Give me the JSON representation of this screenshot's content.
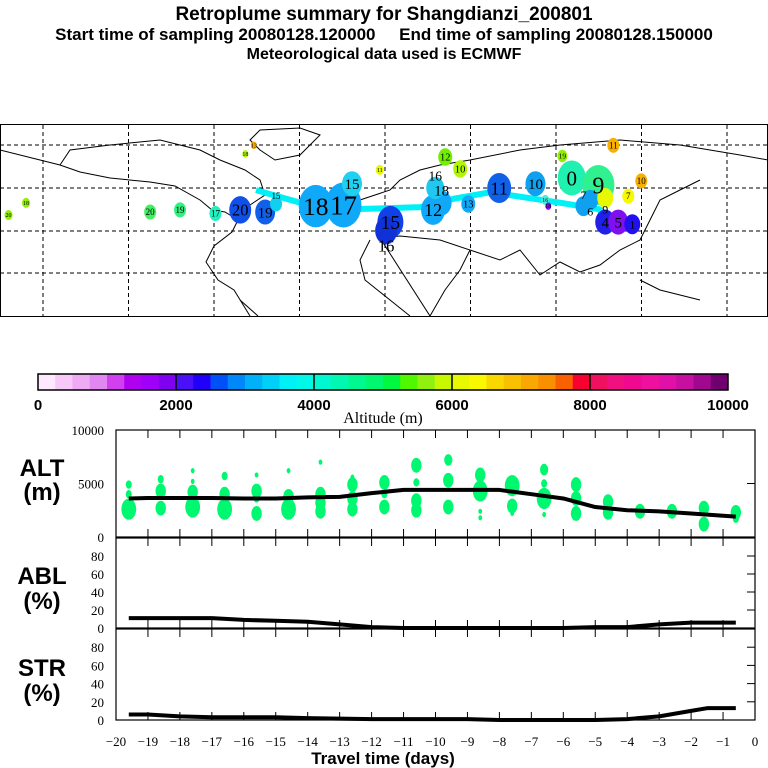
{
  "title": {
    "line1": "Retroplume summary for Shangdianzi_200801",
    "line2": "Start time of sampling 20080128.120000     End time of sampling 20080128.150000",
    "line3": "Meteorological data used is ECMWF"
  },
  "colorbar": {
    "label": "Altitude (m)",
    "ticks": [
      "0",
      "2000",
      "4000",
      "6000",
      "8000",
      "10000"
    ],
    "colors": [
      "#fde8fd",
      "#f8c8f8",
      "#eeaaf2",
      "#e088f0",
      "#d040f0",
      "#b000f0",
      "#a000f8",
      "#8000f0",
      "#4a10f8",
      "#2000f8",
      "#0050f8",
      "#0088f8",
      "#00b0f8",
      "#00d0f8",
      "#00f0f8",
      "#00f8e8",
      "#00f8d0",
      "#00f8b0",
      "#00f890",
      "#00f870",
      "#00f840",
      "#50f800",
      "#90f010",
      "#c8f800",
      "#e8f800",
      "#f8f800",
      "#f8d800",
      "#f8c000",
      "#f8a800",
      "#f89000",
      "#f86000",
      "#f80030",
      "#f01060",
      "#f01080",
      "#f00890",
      "#f010a0",
      "#e010a8",
      "#c810a0",
      "#a00890",
      "#700070"
    ]
  },
  "map": {
    "path_color": "#00f0f8",
    "path": [
      [
        -60,
        49
      ],
      [
        -39,
        43
      ],
      [
        -16,
        40
      ],
      [
        17,
        41
      ],
      [
        33,
        45
      ],
      [
        50,
        48
      ],
      [
        83,
        43
      ],
      [
        101,
        40
      ],
      [
        104,
        34
      ],
      [
        110,
        33
      ]
    ],
    "markers": [
      {
        "label": "17",
        "lon": -19,
        "lat": 42,
        "size": 18,
        "color": "#10a8f8"
      },
      {
        "label": "18",
        "lon": -32,
        "lat": 41.5,
        "size": 17,
        "color": "#10a8f8"
      },
      {
        "label": "15",
        "lon": 3,
        "lat": 34,
        "size": 13,
        "color": "#1040e8"
      },
      {
        "label": "16",
        "lon": 1,
        "lat": 30,
        "size": 11,
        "color": "#1030d8"
      },
      {
        "label": "12",
        "lon": 23,
        "lat": 39.7,
        "size": 12,
        "color": "#10a8f8"
      },
      {
        "label": "18",
        "lon": 27,
        "lat": 43,
        "size": 10,
        "color": "#10a8f8"
      },
      {
        "label": "13",
        "lon": 39.5,
        "lat": 42.5,
        "size": 7,
        "color": "#10a8f8"
      },
      {
        "label": "15",
        "lon": -15,
        "lat": 52,
        "size": 10,
        "color": "#20d0f0"
      },
      {
        "label": "16",
        "lon": 24,
        "lat": 50,
        "size": 9,
        "color": "#20c8f0"
      },
      {
        "label": "11",
        "lon": 54,
        "lat": 50,
        "size": 12,
        "color": "#1060e8"
      },
      {
        "label": "10",
        "lon": 71,
        "lat": 52,
        "size": 10,
        "color": "#10a0f0"
      },
      {
        "label": "0",
        "lon": 88,
        "lat": 54.7,
        "size": 14,
        "color": "#20f0b0"
      },
      {
        "label": "9",
        "lon": 100.5,
        "lat": 51.4,
        "size": 16,
        "color": "#30f090"
      },
      {
        "label": "6",
        "lon": 96.7,
        "lat": 44.4,
        "size": 8,
        "color": "#10a0f0"
      },
      {
        "label": "7",
        "lon": 93.5,
        "lat": 41.5,
        "size": 8,
        "color": "#10a0f0"
      },
      {
        "label": "9",
        "lon": 103.7,
        "lat": 45.3,
        "size": 8,
        "color": "#e8f800"
      },
      {
        "label": "7",
        "lon": 114.5,
        "lat": 46.2,
        "size": 6,
        "color": "#f8f800"
      },
      {
        "label": "10",
        "lon": 120.6,
        "lat": 53.3,
        "size": 6,
        "color": "#f8b000"
      },
      {
        "label": "11",
        "lon": 107.5,
        "lat": 70,
        "size": 6,
        "color": "#f8b000"
      },
      {
        "label": "19",
        "lon": 83.6,
        "lat": 65,
        "size": 5,
        "color": "#90f000"
      },
      {
        "label": "12",
        "lon": 28.7,
        "lat": 64.5,
        "size": 7,
        "color": "#70f000"
      },
      {
        "label": "10",
        "lon": 35.7,
        "lat": 58.9,
        "size": 7,
        "color": "#b0f800"
      },
      {
        "label": "4",
        "lon": 103.7,
        "lat": 34,
        "size": 10,
        "color": "#2020e8"
      },
      {
        "label": "5",
        "lon": 109.8,
        "lat": 34,
        "size": 10,
        "color": "#8010f0"
      },
      {
        "label": "1",
        "lon": 116.4,
        "lat": 33,
        "size": 8,
        "color": "#2010f0"
      },
      {
        "label": "20",
        "lon": -67.4,
        "lat": 39.7,
        "size": 11,
        "color": "#1050e8"
      },
      {
        "label": "19",
        "lon": -55.7,
        "lat": 38.7,
        "size": 10,
        "color": "#1060e8"
      },
      {
        "label": "15",
        "lon": -50.6,
        "lat": 42.5,
        "size": 6,
        "color": "#10d0f0"
      },
      {
        "label": "17",
        "lon": -79,
        "lat": 38,
        "size": 6,
        "color": "#20f0c0"
      },
      {
        "label": "19",
        "lon": -95.6,
        "lat": 39.7,
        "size": 6,
        "color": "#30f080"
      },
      {
        "label": "20",
        "lon": -109.6,
        "lat": 38.7,
        "size": 6,
        "color": "#40f060"
      },
      {
        "label": "18",
        "lon": -167.8,
        "lat": 43,
        "size": 4,
        "color": "#90f000"
      },
      {
        "label": "20",
        "lon": -176,
        "lat": 37.3,
        "size": 4,
        "color": "#90f000"
      },
      {
        "label": "18",
        "lon": -65,
        "lat": 66,
        "size": 3,
        "color": "#b0f800"
      },
      {
        "label": "13",
        "lon": -61,
        "lat": 70,
        "size": 3,
        "color": "#f8a800"
      },
      {
        "label": "11",
        "lon": -2,
        "lat": 58.5,
        "size": 4,
        "color": "#e8f800"
      },
      {
        "label": "16",
        "lon": 75.6,
        "lat": 44.4,
        "size": 4,
        "color": "#40f0e0"
      },
      {
        "label": "18",
        "lon": 77,
        "lat": 41.5,
        "size": 3,
        "color": "#8010f0"
      }
    ]
  },
  "panels": {
    "alt": {
      "label1": "ALT",
      "label2": "(m)",
      "ylim": [
        0,
        10000
      ],
      "ticks": [
        "0",
        "5000",
        "10000"
      ]
    },
    "abl": {
      "label1": "ABL",
      "label2": "(%)",
      "ylim": [
        0,
        100
      ],
      "ticks": [
        "0",
        "20",
        "40",
        "60",
        "80"
      ]
    },
    "str": {
      "label1": "STR",
      "label2": "(%)",
      "ylim": [
        0,
        100
      ],
      "ticks": [
        "0",
        "20",
        "40",
        "60",
        "80"
      ]
    }
  },
  "xaxis": {
    "label": "Travel time (days)",
    "xlim": [
      -20,
      0
    ],
    "ticks": [
      "−20",
      "−19",
      "−18",
      "−17",
      "−16",
      "−15",
      "−14",
      "−13",
      "−12",
      "−11",
      "−10",
      "−9",
      "−8",
      "−7",
      "−6",
      "−5",
      "−4",
      "−3",
      "−2",
      "−1",
      "0"
    ]
  },
  "chart_data": [
    {
      "type": "line",
      "title": "ALT (m)",
      "xlabel": "Travel time (days)",
      "ylabel": "ALT (m)",
      "xlim": [
        -20,
        0
      ],
      "ylim": [
        0,
        10000
      ],
      "line_color": "#000000",
      "x": [
        -19.6,
        -19,
        -17,
        -16,
        -15,
        -14,
        -13,
        -12,
        -11,
        -10,
        -9,
        -8,
        -7,
        -6,
        -5,
        -4,
        -3,
        -2,
        -0.6
      ],
      "y": [
        3600,
        3650,
        3650,
        3600,
        3600,
        3700,
        3750,
        4100,
        4400,
        4400,
        4400,
        4400,
        4000,
        3600,
        2800,
        2500,
        2400,
        2200,
        1900
      ],
      "scatter_color": "#00f870",
      "scatter": [
        [
          -19.6,
          4900,
          1
        ],
        [
          -19.6,
          4000,
          1
        ],
        [
          -19.6,
          2600,
          3
        ],
        [
          -18.6,
          5400,
          1
        ],
        [
          -18.6,
          4300,
          2
        ],
        [
          -18.6,
          2700,
          2
        ],
        [
          -17.6,
          6200,
          0.5
        ],
        [
          -17.6,
          5200,
          0.5
        ],
        [
          -17.6,
          4200,
          2
        ],
        [
          -17.6,
          2800,
          3
        ],
        [
          -16.6,
          5700,
          1
        ],
        [
          -16.6,
          4000,
          2
        ],
        [
          -16.6,
          2600,
          3
        ],
        [
          -15.6,
          5800,
          0.5
        ],
        [
          -15.6,
          4300,
          2
        ],
        [
          -15.6,
          3600,
          1
        ],
        [
          -15.6,
          2200,
          2
        ],
        [
          -14.6,
          6200,
          0.5
        ],
        [
          -14.6,
          3800,
          2
        ],
        [
          -14.6,
          2600,
          3
        ],
        [
          -13.6,
          7000,
          0.5
        ],
        [
          -13.6,
          4000,
          2
        ],
        [
          -13.6,
          3200,
          2
        ],
        [
          -13.6,
          2400,
          2
        ],
        [
          -12.6,
          5600,
          0.5
        ],
        [
          -12.6,
          4900,
          2
        ],
        [
          -12.6,
          3600,
          2
        ],
        [
          -12.6,
          2600,
          2
        ],
        [
          -11.6,
          5100,
          2
        ],
        [
          -11.6,
          4000,
          1
        ],
        [
          -11.6,
          2800,
          2
        ],
        [
          -10.6,
          6700,
          2
        ],
        [
          -10.6,
          5100,
          1
        ],
        [
          -10.6,
          3400,
          2
        ],
        [
          -10.6,
          2500,
          2
        ],
        [
          -9.6,
          7200,
          1.5
        ],
        [
          -9.6,
          5300,
          2
        ],
        [
          -9.6,
          2800,
          2
        ],
        [
          -8.6,
          5800,
          2
        ],
        [
          -8.6,
          4300,
          3
        ],
        [
          -8.6,
          2400,
          0.5
        ],
        [
          -8.6,
          1800,
          0.5
        ],
        [
          -7.6,
          4800,
          3
        ],
        [
          -7.6,
          2900,
          2
        ],
        [
          -7.6,
          2200,
          0.5
        ],
        [
          -6.6,
          6300,
          1.5
        ],
        [
          -6.6,
          5000,
          1
        ],
        [
          -6.6,
          3600,
          3
        ],
        [
          -6.6,
          2100,
          0.5
        ],
        [
          -5.6,
          4900,
          2
        ],
        [
          -5.6,
          3600,
          2
        ],
        [
          -5.6,
          2200,
          2
        ],
        [
          -4.6,
          3300,
          2
        ],
        [
          -4.6,
          2300,
          2
        ],
        [
          -3.6,
          2400,
          2
        ],
        [
          -2.6,
          2400,
          2
        ],
        [
          -1.6,
          2700,
          2
        ],
        [
          -1.6,
          1200,
          2
        ],
        [
          -0.6,
          2300,
          2
        ],
        [
          -0.6,
          1700,
          1
        ]
      ]
    },
    {
      "type": "line",
      "title": "ABL (%)",
      "xlabel": "Travel time (days)",
      "ylabel": "ABL (%)",
      "xlim": [
        -20,
        0
      ],
      "ylim": [
        0,
        100
      ],
      "x": [
        -19.6,
        -17,
        -16,
        -15,
        -14,
        -13,
        -12,
        -11,
        -6,
        -5,
        -4,
        -3,
        -2,
        -0.6
      ],
      "y": [
        11,
        11,
        9,
        8,
        7,
        4,
        1,
        0,
        0,
        1,
        1,
        4,
        6,
        6
      ]
    },
    {
      "type": "line",
      "title": "STR (%)",
      "xlabel": "Travel time (days)",
      "ylabel": "STR (%)",
      "xlim": [
        -20,
        0
      ],
      "ylim": [
        0,
        100
      ],
      "x": [
        -19.6,
        -19,
        -18,
        -17,
        -15,
        -14,
        -12,
        -9,
        -8,
        -5,
        -4,
        -3,
        -2,
        -1.5,
        -0.6
      ],
      "y": [
        6,
        6,
        4,
        3,
        3,
        2,
        1,
        1,
        0,
        0,
        1,
        4,
        10,
        13,
        13
      ]
    }
  ]
}
